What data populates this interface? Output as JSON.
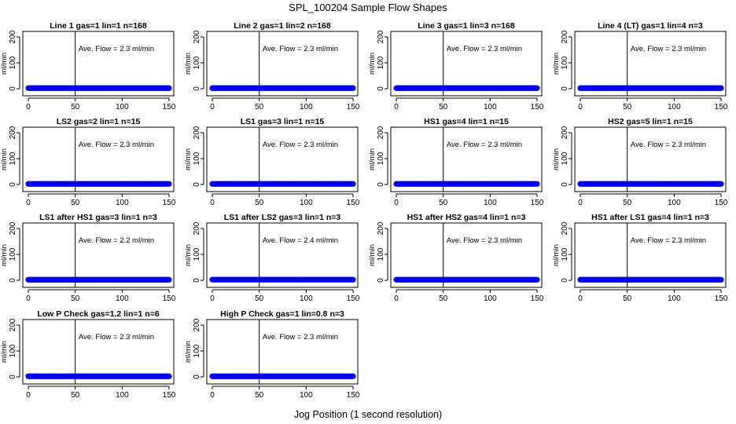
{
  "title": "SPL_100204  Sample Flow Shapes",
  "xlabel": "Jog Position (1 second resolution)",
  "colors": {
    "points": "#0000ee",
    "axis": "#000000",
    "background": "#ffffff"
  },
  "chart_data": [
    {
      "type": "scatter",
      "title": "Line 1 gas=1 lin=1 n=168",
      "ylabel": "ml/min",
      "annotation": "Ave. Flow =  2.3  ml/min",
      "ave_flow": 2.3,
      "vline_x": 50,
      "x": [
        0,
        150
      ],
      "y": [
        2.3,
        2.3
      ],
      "xlim": [
        0,
        150
      ],
      "ylim": [
        0,
        200
      ],
      "xticks": [
        "0",
        "50",
        "100",
        "150"
      ],
      "yticks": [
        "0",
        "100",
        "200"
      ]
    },
    {
      "type": "scatter",
      "title": "Line 2 gas=1 lin=2 n=168",
      "ylabel": "ml/min",
      "annotation": "Ave. Flow =  2.3  ml/min",
      "ave_flow": 2.3,
      "vline_x": 50,
      "x": [
        0,
        150
      ],
      "y": [
        2.3,
        2.3
      ],
      "xlim": [
        0,
        150
      ],
      "ylim": [
        0,
        200
      ],
      "xticks": [
        "0",
        "50",
        "100",
        "150"
      ],
      "yticks": [
        "0",
        "100",
        "200"
      ]
    },
    {
      "type": "scatter",
      "title": "Line 3 gas=1 lin=3 n=168",
      "ylabel": "ml/min",
      "annotation": "Ave. Flow =  2.3  ml/min",
      "ave_flow": 2.3,
      "vline_x": 50,
      "x": [
        0,
        150
      ],
      "y": [
        2.3,
        2.3
      ],
      "xlim": [
        0,
        150
      ],
      "ylim": [
        0,
        200
      ],
      "xticks": [
        "0",
        "50",
        "100",
        "150"
      ],
      "yticks": [
        "0",
        "100",
        "200"
      ]
    },
    {
      "type": "scatter",
      "title": "Line 4 (LT) gas=1 lin=4 n=3",
      "ylabel": "ml/min",
      "annotation": "Ave. Flow =  2.3  ml/min",
      "ave_flow": 2.3,
      "vline_x": 50,
      "x": [
        0,
        150
      ],
      "y": [
        2.3,
        2.3
      ],
      "xlim": [
        0,
        150
      ],
      "ylim": [
        0,
        200
      ],
      "xticks": [
        "0",
        "50",
        "100",
        "150"
      ],
      "yticks": [
        "0",
        "100",
        "200"
      ]
    },
    {
      "type": "scatter",
      "title": "LS2 gas=2 lin=1 n=15",
      "ylabel": "ml/min",
      "annotation": "Ave. Flow =  2.3  ml/min",
      "ave_flow": 2.3,
      "vline_x": 50,
      "x": [
        0,
        150
      ],
      "y": [
        2.3,
        2.3
      ],
      "xlim": [
        0,
        150
      ],
      "ylim": [
        0,
        200
      ],
      "xticks": [
        "0",
        "50",
        "100",
        "150"
      ],
      "yticks": [
        "0",
        "100",
        "200"
      ]
    },
    {
      "type": "scatter",
      "title": "LS1 gas=3 lin=1 n=15",
      "ylabel": "ml/min",
      "annotation": "Ave. Flow =  2.3  ml/min",
      "ave_flow": 2.3,
      "vline_x": 50,
      "x": [
        0,
        150
      ],
      "y": [
        2.3,
        2.3
      ],
      "xlim": [
        0,
        150
      ],
      "ylim": [
        0,
        200
      ],
      "xticks": [
        "0",
        "50",
        "100",
        "150"
      ],
      "yticks": [
        "0",
        "100",
        "200"
      ]
    },
    {
      "type": "scatter",
      "title": "HS1 gas=4 lin=1 n=15",
      "ylabel": "ml/min",
      "annotation": "Ave. Flow =  2.3  ml/min",
      "ave_flow": 2.3,
      "vline_x": 50,
      "x": [
        0,
        150
      ],
      "y": [
        2.3,
        2.3
      ],
      "xlim": [
        0,
        150
      ],
      "ylim": [
        0,
        200
      ],
      "xticks": [
        "0",
        "50",
        "100",
        "150"
      ],
      "yticks": [
        "0",
        "100",
        "200"
      ]
    },
    {
      "type": "scatter",
      "title": "HS2 gas=5 lin=1 n=15",
      "ylabel": "ml/min",
      "annotation": "Ave. Flow =  2.3  ml/min",
      "ave_flow": 2.3,
      "vline_x": 50,
      "x": [
        0,
        150
      ],
      "y": [
        2.3,
        2.3
      ],
      "xlim": [
        0,
        150
      ],
      "ylim": [
        0,
        200
      ],
      "xticks": [
        "0",
        "50",
        "100",
        "150"
      ],
      "yticks": [
        "0",
        "100",
        "200"
      ]
    },
    {
      "type": "scatter",
      "title": "LS1 after HS1 gas=3 lin=1 n=3",
      "ylabel": "ml/min",
      "annotation": "Ave. Flow =  2.2  ml/min",
      "ave_flow": 2.2,
      "vline_x": 50,
      "x": [
        0,
        150
      ],
      "y": [
        2.2,
        2.2
      ],
      "xlim": [
        0,
        150
      ],
      "ylim": [
        0,
        200
      ],
      "xticks": [
        "0",
        "50",
        "100",
        "150"
      ],
      "yticks": [
        "0",
        "100",
        "200"
      ]
    },
    {
      "type": "scatter",
      "title": "LS1 after LS2 gas=3 lin=1 n=3",
      "ylabel": "ml/min",
      "annotation": "Ave. Flow =  2.4  ml/min",
      "ave_flow": 2.4,
      "vline_x": 50,
      "x": [
        0,
        150
      ],
      "y": [
        2.4,
        2.4
      ],
      "xlim": [
        0,
        150
      ],
      "ylim": [
        0,
        200
      ],
      "xticks": [
        "0",
        "50",
        "100",
        "150"
      ],
      "yticks": [
        "0",
        "100",
        "200"
      ]
    },
    {
      "type": "scatter",
      "title": "HS1 after HS2 gas=4 lin=1 n=3",
      "ylabel": "ml/min",
      "annotation": "Ave. Flow =  2.3  ml/min",
      "ave_flow": 2.3,
      "vline_x": 50,
      "x": [
        0,
        150
      ],
      "y": [
        2.3,
        2.3
      ],
      "xlim": [
        0,
        150
      ],
      "ylim": [
        0,
        200
      ],
      "xticks": [
        "0",
        "50",
        "100",
        "150"
      ],
      "yticks": [
        "0",
        "100",
        "200"
      ]
    },
    {
      "type": "scatter",
      "title": "HS1 after LS1 gas=4 lin=1 n=3",
      "ylabel": "ml/min",
      "annotation": "Ave. Flow =  2.3  ml/min",
      "ave_flow": 2.3,
      "vline_x": 50,
      "x": [
        0,
        150
      ],
      "y": [
        2.3,
        2.3
      ],
      "xlim": [
        0,
        150
      ],
      "ylim": [
        0,
        200
      ],
      "xticks": [
        "0",
        "50",
        "100",
        "150"
      ],
      "yticks": [
        "0",
        "100",
        "200"
      ]
    },
    {
      "type": "scatter",
      "title": "Low P Check gas=1.2 lin=1 n=6",
      "ylabel": "ml/min",
      "annotation": "Ave. Flow =  2.3  ml/min",
      "ave_flow": 2.3,
      "vline_x": 50,
      "x": [
        0,
        150
      ],
      "y": [
        2.3,
        2.3
      ],
      "xlim": [
        0,
        150
      ],
      "ylim": [
        0,
        200
      ],
      "xticks": [
        "0",
        "50",
        "100",
        "150"
      ],
      "yticks": [
        "0",
        "100",
        "200"
      ]
    },
    {
      "type": "scatter",
      "title": "High P Check gas=1 lin=0.8 n=3",
      "ylabel": "ml/min",
      "annotation": "Ave. Flow =  2.3  ml/min",
      "ave_flow": 2.3,
      "vline_x": 50,
      "x": [
        0,
        150
      ],
      "y": [
        2.3,
        2.3
      ],
      "xlim": [
        0,
        150
      ],
      "ylim": [
        0,
        200
      ],
      "xticks": [
        "0",
        "50",
        "100",
        "150"
      ],
      "yticks": [
        "0",
        "100",
        "200"
      ]
    }
  ]
}
